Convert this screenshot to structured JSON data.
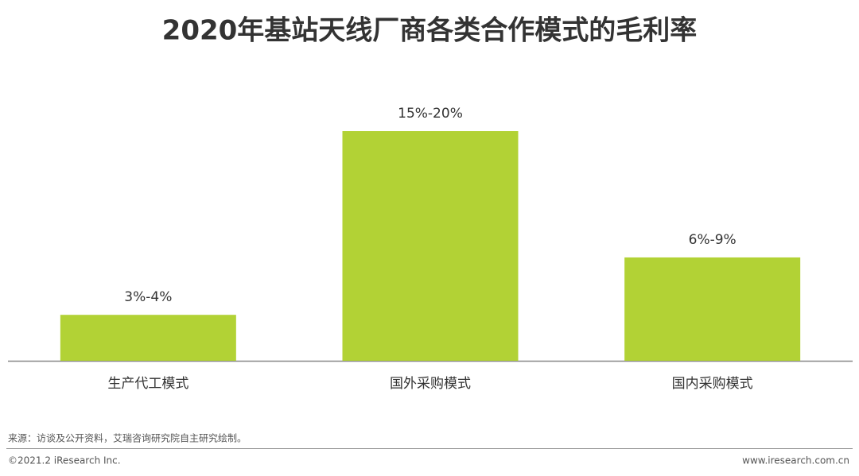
{
  "chart_data": {
    "type": "bar",
    "title": "2020年基站天线厂商各类合作模式的毛利率",
    "categories": [
      "生产代工模式",
      "国外采购模式",
      "国内采购模式"
    ],
    "values": [
      4,
      20,
      9
    ],
    "value_labels": [
      "3%-4%",
      "15%-20%",
      "6%-9%"
    ],
    "color": "#b2d235",
    "source": "来源：访谈及公开资料，艾瑞咨询研究院自主研究绘制。",
    "copyright": "©2021.2 iResearch Inc.",
    "website": "www.iresearch.com.cn"
  }
}
